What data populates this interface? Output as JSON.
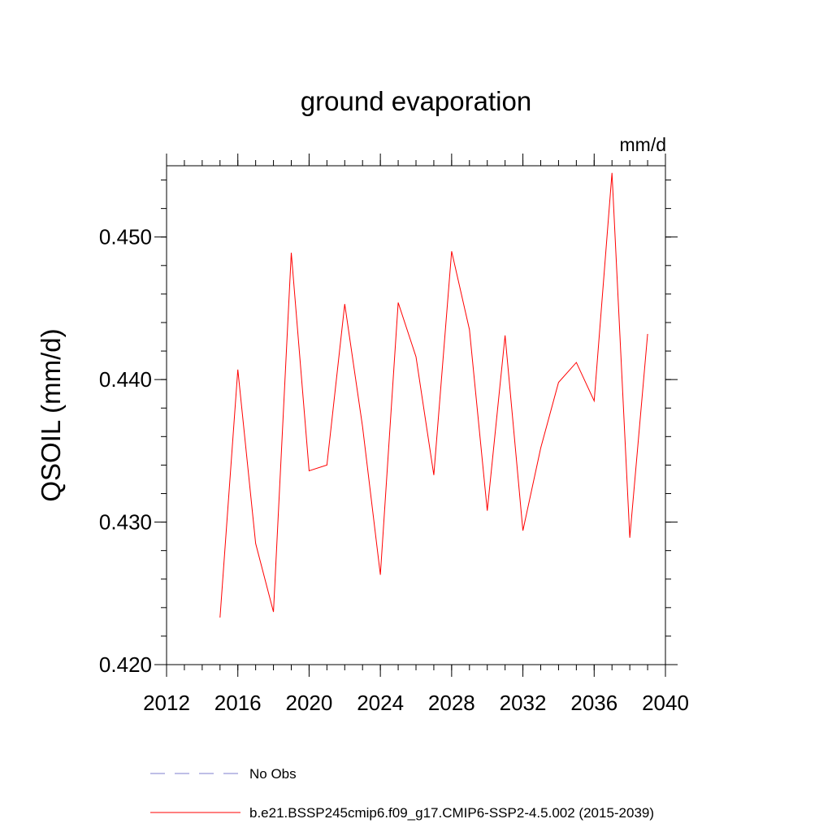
{
  "chart_data": {
    "type": "line",
    "title": "ground evaporation",
    "units_label": "mm/d",
    "ylabel": "QSOIL  (mm/d)",
    "xlabel": "",
    "xlim": [
      2012,
      2040
    ],
    "ylim": [
      0.42,
      0.455
    ],
    "x_ticks": [
      2012,
      2016,
      2020,
      2024,
      2028,
      2032,
      2036,
      2040
    ],
    "x_tick_labels": [
      "2012",
      "2016",
      "2020",
      "2024",
      "2028",
      "2032",
      "2036",
      "2040"
    ],
    "x_minor_step": 1,
    "y_ticks": [
      0.42,
      0.43,
      0.44,
      0.45
    ],
    "y_tick_labels": [
      "0.420",
      "0.430",
      "0.440",
      "0.450"
    ],
    "y_minor_step": 0.002,
    "grid": false,
    "series": [
      {
        "name": "b.e21.BSSP245cmip6.f09_g17.CMIP6-SSP2-4.5.002 (2015-2039)",
        "color": "#ff0000",
        "style": "solid",
        "x": [
          2015,
          2016,
          2017,
          2018,
          2019,
          2020,
          2021,
          2022,
          2023,
          2024,
          2025,
          2026,
          2027,
          2028,
          2029,
          2030,
          2031,
          2032,
          2033,
          2034,
          2035,
          2036,
          2037,
          2038,
          2039
        ],
        "values": [
          0.4233,
          0.4407,
          0.4285,
          0.4237,
          0.4489,
          0.4336,
          0.434,
          0.4453,
          0.4367,
          0.4263,
          0.4454,
          0.4416,
          0.4333,
          0.449,
          0.4435,
          0.4308,
          0.4431,
          0.4294,
          0.4352,
          0.4398,
          0.4412,
          0.4385,
          0.4545,
          0.4289,
          0.4432
        ]
      }
    ],
    "legend": {
      "placement": "bottom",
      "entries": [
        {
          "label": "No Obs",
          "color": "#7f7fcf",
          "style": "dashed"
        },
        {
          "label": "b.e21.BSSP245cmip6.f09_g17.CMIP6-SSP2-4.5.002 (2015-2039)",
          "color": "#ff0000",
          "style": "solid"
        }
      ]
    }
  }
}
